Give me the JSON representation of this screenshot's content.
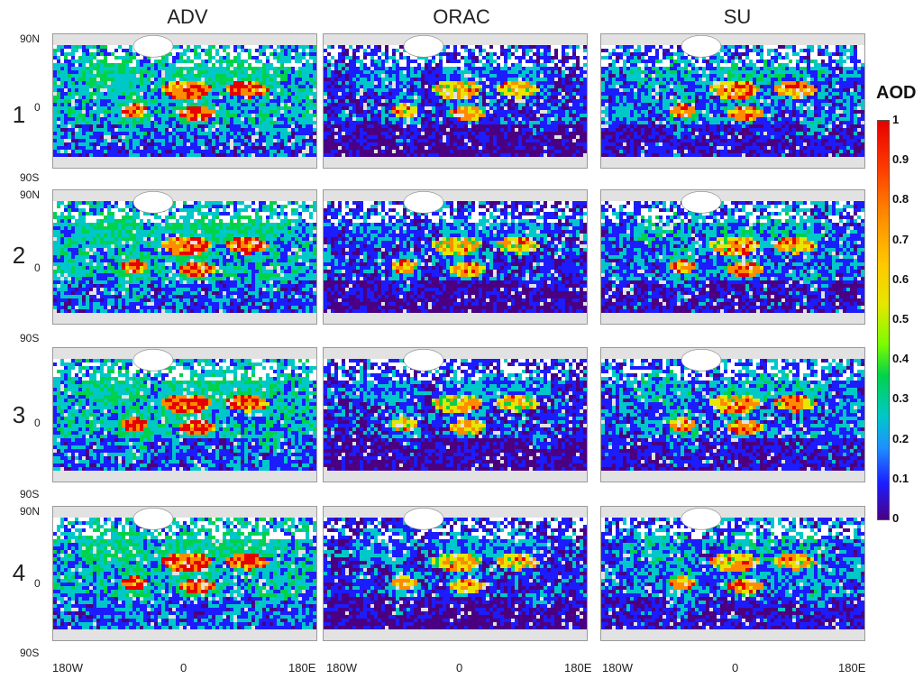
{
  "columns": [
    "ADV",
    "ORAC",
    "SU"
  ],
  "rows": [
    "1",
    "2",
    "3",
    "4"
  ],
  "lat_labels": {
    "north": "90N",
    "equator": "0",
    "south": "90S"
  },
  "lon_labels": [
    "180W",
    "0",
    "180E"
  ],
  "colorbar": {
    "title": "AOD",
    "ticks": [
      "1",
      "0.9",
      "0.8",
      "0.7",
      "0.6",
      "0.5",
      "0.4",
      "0.3",
      "0.2",
      "0.1",
      "0"
    ],
    "colors": {
      "min": "#4b0082",
      "blue": "#1c1cff",
      "cyan": "#00c8c8",
      "green": "#00d24b",
      "yellow": "#e6e600",
      "orange": "#ff8c00",
      "max": "#e60000",
      "no_data": "#e2e2e2",
      "cloud_white": "#ffffff"
    }
  }
}
